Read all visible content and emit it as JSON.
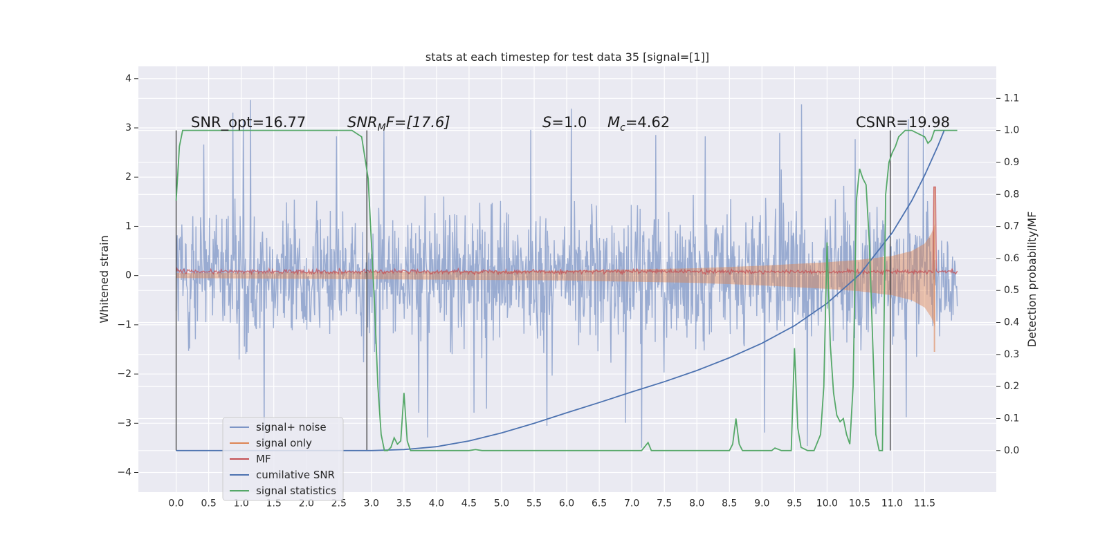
{
  "chart_data": {
    "type": "line",
    "title": "stats at each timestep for test data 35 [signal=[1]]",
    "ylabel": "Whitened strain",
    "y2label": "Detection probability/MF",
    "xlim": [
      -0.58,
      12.6
    ],
    "ylim": [
      -4.4,
      4.25
    ],
    "y2lim": [
      -0.13,
      1.2
    ],
    "xticks": [
      "0.0",
      "0.5",
      "1.0",
      "1.5",
      "2.0",
      "2.5",
      "3.0",
      "3.5",
      "4.0",
      "4.5",
      "5.0",
      "5.5",
      "6.0",
      "6.5",
      "7.0",
      "7.5",
      "8.0",
      "8.5",
      "9.0",
      "9.5",
      "10.0",
      "10.5",
      "11.0",
      "11.5"
    ],
    "yticks": [
      "4",
      "3",
      "2",
      "1",
      "0",
      "−1",
      "−2",
      "−3",
      "−4"
    ],
    "y2ticks": [
      "1.1",
      "1.0",
      "0.9",
      "0.8",
      "0.7",
      "0.6",
      "0.5",
      "0.4",
      "0.3",
      "0.2",
      "0.1",
      "0.0"
    ],
    "grid": true,
    "legend_position": "lower-left",
    "annotations": {
      "snr_opt": "SNR_opt=16.77",
      "snr_mf_base": "SNR",
      "snr_mf_sub": "M",
      "snr_mf_rest": "F=[17.6]",
      "s_var": "S",
      "s_rest": "=1.0",
      "mc_base": "M",
      "mc_sub": "c",
      "mc_rest": "=4.62",
      "csnr": "CSNR=19.98"
    },
    "series": [
      {
        "name": "signal+ noise",
        "color": "#7d95c6",
        "x_range": [
          0.0,
          12.0
        ],
        "amplitude": "±1.3 (peaks ±3.9)"
      },
      {
        "name": "signal only",
        "color": "#dd8452",
        "envelope_x": [
          0.0,
          6.0,
          8.0,
          9.0,
          10.0,
          10.5,
          11.0,
          11.3,
          11.5,
          11.6,
          11.66
        ],
        "envelope_amp": [
          0.05,
          0.1,
          0.15,
          0.2,
          0.27,
          0.32,
          0.4,
          0.5,
          0.65,
          0.85,
          1.05
        ]
      },
      {
        "name": "MF",
        "color": "#c44e52",
        "x_range": [
          0.0,
          12.0
        ],
        "level": 0.08,
        "spike": {
          "x": 11.65,
          "y": 1.8
        }
      },
      {
        "name": "cumilative SNR",
        "color": "#4c72b0",
        "axis": "y2",
        "x": [
          0.0,
          3.0,
          3.5,
          4.0,
          4.5,
          5.0,
          5.5,
          6.0,
          6.5,
          7.0,
          7.5,
          8.0,
          8.5,
          9.0,
          9.5,
          10.0,
          10.5,
          11.0,
          11.3,
          11.5,
          11.7,
          11.8
        ],
        "values": [
          0.0,
          0.0,
          0.003,
          0.012,
          0.03,
          0.055,
          0.085,
          0.118,
          0.15,
          0.183,
          0.215,
          0.25,
          0.29,
          0.335,
          0.39,
          0.46,
          0.55,
          0.68,
          0.78,
          0.86,
          0.95,
          1.0
        ]
      },
      {
        "name": "signal statistics",
        "color": "#55a868",
        "axis": "y2",
        "x": [
          0.0,
          0.05,
          0.1,
          0.2,
          0.5,
          1.0,
          2.0,
          2.5,
          2.7,
          2.85,
          2.95,
          3.0,
          3.05,
          3.1,
          3.15,
          3.2,
          3.25,
          3.3,
          3.35,
          3.4,
          3.45,
          3.5,
          3.55,
          3.6,
          3.7,
          3.8,
          4.0,
          4.5,
          4.6,
          4.7,
          4.8,
          5.0,
          6.0,
          7.0,
          7.15,
          7.25,
          7.3,
          7.4,
          8.0,
          8.5,
          8.55,
          8.6,
          8.65,
          8.7,
          8.8,
          9.0,
          9.15,
          9.2,
          9.3,
          9.4,
          9.45,
          9.5,
          9.55,
          9.6,
          9.7,
          9.8,
          9.9,
          9.95,
          10.0,
          10.05,
          10.1,
          10.15,
          10.2,
          10.25,
          10.3,
          10.35,
          10.4,
          10.45,
          10.5,
          10.55,
          10.6,
          10.65,
          10.7,
          10.75,
          10.8,
          10.85,
          10.9,
          10.95,
          11.0,
          11.05,
          11.1,
          11.2,
          11.3,
          11.4,
          11.5,
          11.55,
          11.6,
          11.65,
          11.7,
          11.8,
          12.0
        ],
        "values": [
          0.78,
          0.95,
          1.0,
          1.0,
          1.0,
          1.0,
          1.0,
          1.0,
          1.0,
          0.98,
          0.85,
          0.65,
          0.45,
          0.2,
          0.05,
          0.0,
          0.0,
          0.01,
          0.04,
          0.02,
          0.03,
          0.18,
          0.03,
          0.0,
          0.0,
          0.0,
          0.0,
          0.0,
          0.003,
          0.0,
          0.0,
          0.0,
          0.0,
          0.0,
          0.0,
          0.025,
          0.0,
          0.0,
          0.0,
          0.0,
          0.02,
          0.1,
          0.02,
          0.0,
          0.0,
          0.0,
          0.0,
          0.008,
          0.0,
          0.0,
          0.0,
          0.32,
          0.07,
          0.01,
          0.0,
          0.0,
          0.05,
          0.2,
          0.65,
          0.33,
          0.18,
          0.11,
          0.09,
          0.1,
          0.05,
          0.02,
          0.2,
          0.78,
          0.88,
          0.85,
          0.83,
          0.65,
          0.35,
          0.05,
          0.0,
          0.0,
          0.8,
          0.9,
          0.93,
          0.95,
          0.98,
          1.0,
          1.0,
          0.99,
          0.98,
          0.96,
          0.97,
          1.0,
          1.0,
          1.0,
          1.0
        ]
      }
    ],
    "vertical_lines": [
      0.0,
      2.93,
      10.97
    ]
  }
}
